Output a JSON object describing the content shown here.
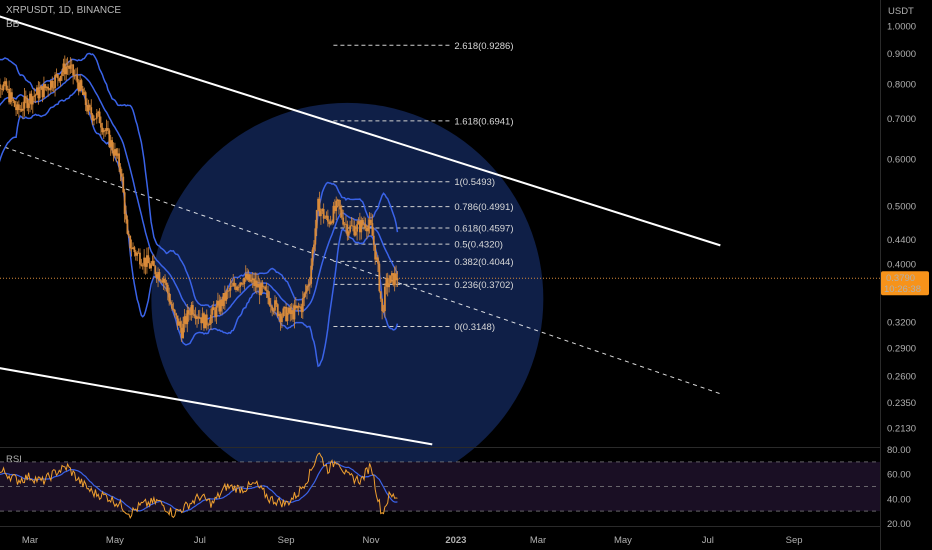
{
  "header": {
    "symbol": "XRPUSDT, 1D, BINANCE",
    "indicator": "BB",
    "rsi_label": "RSI",
    "currency": "USDT"
  },
  "price_tag": {
    "value": "0.3790",
    "countdown": "10:26:38",
    "color": "#f7931a"
  },
  "colors": {
    "background": "#000000",
    "candles": "#d88a3a",
    "bollinger": "#3a63e8",
    "channel": "#ffffff",
    "circle": "#0f1f47",
    "rsi_line": "#f0a030",
    "rsi_ma": "#3a63e8"
  },
  "chart_data": [
    {
      "type": "candlestick",
      "title": "XRPUSDT, 1D, BINANCE",
      "ylabel": "USDT",
      "scale": "log",
      "ylim": [
        0.2,
        1.02
      ],
      "y_ticks": [
        "1.0000",
        "0.9000",
        "0.8000",
        "0.7000",
        "0.6000",
        "0.5000",
        "0.4400",
        "0.4000",
        "0.3200",
        "0.2900",
        "0.2600",
        "0.2350",
        "0.2130"
      ],
      "x_ticks": [
        "Mar",
        "May",
        "Jul",
        "Sep",
        "Nov",
        "2023",
        "Mar",
        "May",
        "Jul",
        "Sep"
      ],
      "x_tick_dates": [
        "2022-03-01",
        "2022-05-01",
        "2022-07-01",
        "2022-09-01",
        "2022-11-01",
        "2023-01-01",
        "2023-03-01",
        "2023-05-01",
        "2023-07-01",
        "2023-09-01"
      ],
      "price_path": [
        [
          "2022-01-31",
          0.62
        ],
        [
          "2022-02-05",
          0.82
        ],
        [
          "2022-02-12",
          0.78
        ],
        [
          "2022-02-20",
          0.72
        ],
        [
          "2022-03-01",
          0.76
        ],
        [
          "2022-03-10",
          0.78
        ],
        [
          "2022-03-20",
          0.82
        ],
        [
          "2022-03-28",
          0.86
        ],
        [
          "2022-04-05",
          0.8
        ],
        [
          "2022-04-12",
          0.72
        ],
        [
          "2022-04-20",
          0.7
        ],
        [
          "2022-04-30",
          0.62
        ],
        [
          "2022-05-05",
          0.58
        ],
        [
          "2022-05-10",
          0.44
        ],
        [
          "2022-05-15",
          0.42
        ],
        [
          "2022-05-25",
          0.4
        ],
        [
          "2022-06-05",
          0.38
        ],
        [
          "2022-06-12",
          0.33
        ],
        [
          "2022-06-18",
          0.31
        ],
        [
          "2022-06-25",
          0.34
        ],
        [
          "2022-07-05",
          0.32
        ],
        [
          "2022-07-15",
          0.34
        ],
        [
          "2022-07-22",
          0.36
        ],
        [
          "2022-08-01",
          0.38
        ],
        [
          "2022-08-10",
          0.37
        ],
        [
          "2022-08-20",
          0.35
        ],
        [
          "2022-08-28",
          0.33
        ],
        [
          "2022-09-05",
          0.33
        ],
        [
          "2022-09-12",
          0.34
        ],
        [
          "2022-09-18",
          0.38
        ],
        [
          "2022-09-24",
          0.5
        ],
        [
          "2022-10-01",
          0.47
        ],
        [
          "2022-10-08",
          0.5
        ],
        [
          "2022-10-15",
          0.46
        ],
        [
          "2022-10-22",
          0.46
        ],
        [
          "2022-10-28",
          0.47
        ],
        [
          "2022-11-01",
          0.46
        ],
        [
          "2022-11-06",
          0.39
        ],
        [
          "2022-11-09",
          0.33
        ],
        [
          "2022-11-12",
          0.37
        ],
        [
          "2022-11-18",
          0.38
        ],
        [
          "2022-11-20",
          0.379
        ]
      ],
      "fibonacci": [
        {
          "label": "2.618(0.9286)",
          "value": 0.9286
        },
        {
          "label": "1.618(0.6941)",
          "value": 0.6941
        },
        {
          "label": "1(0.5493)",
          "value": 0.5493
        },
        {
          "label": "0.786(0.4991)",
          "value": 0.4991
        },
        {
          "label": "0.618(0.4597)",
          "value": 0.4597
        },
        {
          "label": "0.5(0.4320)",
          "value": 0.432
        },
        {
          "label": "0.382(0.4044)",
          "value": 0.4044
        },
        {
          "label": "0.236(0.3702)",
          "value": 0.3702
        },
        {
          "label": "0(0.3148)",
          "value": 0.3148
        }
      ],
      "fib_start_date": "2022-10-05",
      "fib_end_date": "2022-12-28",
      "channel_upper": [
        [
          "2022-01-31",
          1.05
        ],
        [
          "2023-07-10",
          0.43
        ]
      ],
      "channel_lower": [
        [
          "2022-01-31",
          0.27
        ],
        [
          "2022-12-15",
          0.2
        ]
      ],
      "channel_mid": [
        [
          "2022-01-31",
          0.64
        ],
        [
          "2023-07-10",
          0.243
        ]
      ],
      "circle": {
        "center_date": "2022-10-15",
        "center_price": 0.35
      },
      "last_price": 0.379
    },
    {
      "type": "line",
      "title": "RSI",
      "ylim": [
        15,
        88
      ],
      "y_ticks": [
        "80.00",
        "60.00",
        "40.00",
        "20.00"
      ],
      "levels": [
        70,
        50,
        30
      ],
      "rsi_path": [
        [
          "2022-01-31",
          58
        ],
        [
          "2022-02-10",
          62
        ],
        [
          "2022-02-20",
          55
        ],
        [
          "2022-03-01",
          58
        ],
        [
          "2022-03-10",
          54
        ],
        [
          "2022-03-20",
          62
        ],
        [
          "2022-03-28",
          66
        ],
        [
          "2022-04-05",
          55
        ],
        [
          "2022-04-15",
          45
        ],
        [
          "2022-04-25",
          42
        ],
        [
          "2022-05-05",
          35
        ],
        [
          "2022-05-12",
          28
        ],
        [
          "2022-05-20",
          35
        ],
        [
          "2022-06-01",
          38
        ],
        [
          "2022-06-12",
          28
        ],
        [
          "2022-06-20",
          33
        ],
        [
          "2022-07-01",
          42
        ],
        [
          "2022-07-10",
          36
        ],
        [
          "2022-07-20",
          50
        ],
        [
          "2022-08-01",
          48
        ],
        [
          "2022-08-10",
          52
        ],
        [
          "2022-08-20",
          40
        ],
        [
          "2022-09-01",
          36
        ],
        [
          "2022-09-10",
          45
        ],
        [
          "2022-09-18",
          60
        ],
        [
          "2022-09-24",
          78
        ],
        [
          "2022-10-01",
          64
        ],
        [
          "2022-10-08",
          72
        ],
        [
          "2022-10-15",
          58
        ],
        [
          "2022-10-25",
          55
        ],
        [
          "2022-11-01",
          68
        ],
        [
          "2022-11-06",
          40
        ],
        [
          "2022-11-09",
          28
        ],
        [
          "2022-11-14",
          42
        ],
        [
          "2022-11-20",
          42
        ]
      ]
    }
  ]
}
